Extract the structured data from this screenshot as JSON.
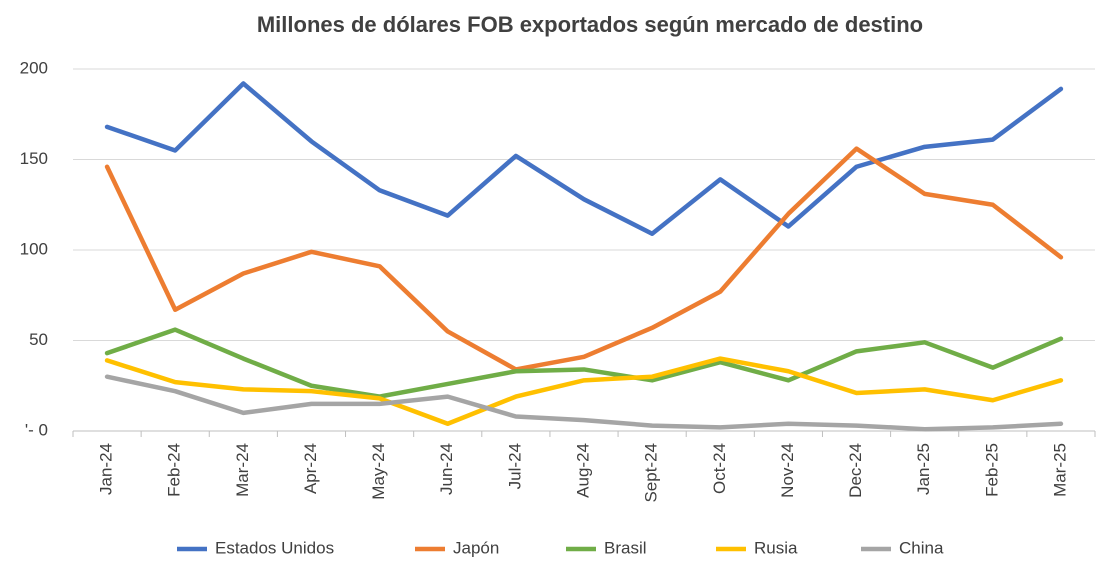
{
  "chart_data": {
    "type": "line",
    "title": "Millones de dólares FOB exportados según mercado de destino",
    "categories": [
      "Jan-24",
      "Feb-24",
      "Mar-24",
      "Apr-24",
      "May-24",
      "Jun-24",
      "Jul-24",
      "Aug-24",
      "Sept-24",
      "Oct-24",
      "Nov-24",
      "Dec-24",
      "Jan-25",
      "Feb-25",
      "Mar-25"
    ],
    "series": [
      {
        "name": "Estados Unidos",
        "color": "#4472c4",
        "values": [
          168,
          155,
          192,
          160,
          133,
          119,
          152,
          128,
          109,
          139,
          113,
          146,
          157,
          161,
          189
        ]
      },
      {
        "name": "Japón",
        "color": "#ed7d31",
        "values": [
          146,
          67,
          87,
          99,
          91,
          55,
          34,
          41,
          57,
          77,
          120,
          156,
          131,
          125,
          96
        ]
      },
      {
        "name": "Brasil",
        "color": "#70ad47",
        "values": [
          43,
          56,
          40,
          25,
          19,
          26,
          33,
          34,
          28,
          38,
          28,
          44,
          49,
          35,
          51
        ]
      },
      {
        "name": "Rusia",
        "color": "#ffc000",
        "values": [
          39,
          27,
          23,
          22,
          18,
          4,
          19,
          28,
          30,
          40,
          33,
          21,
          23,
          17,
          28
        ]
      },
      {
        "name": "China",
        "color": "#a5a5a5",
        "values": [
          30,
          22,
          10,
          15,
          15,
          19,
          8,
          6,
          3,
          2,
          4,
          3,
          1,
          2,
          4
        ]
      }
    ],
    "ylim": [
      0,
      200
    ],
    "yticks": [
      {
        "value": 0,
        "label": "'- 0"
      },
      50,
      100,
      150,
      200
    ],
    "grid": true,
    "legend": "bottom"
  }
}
